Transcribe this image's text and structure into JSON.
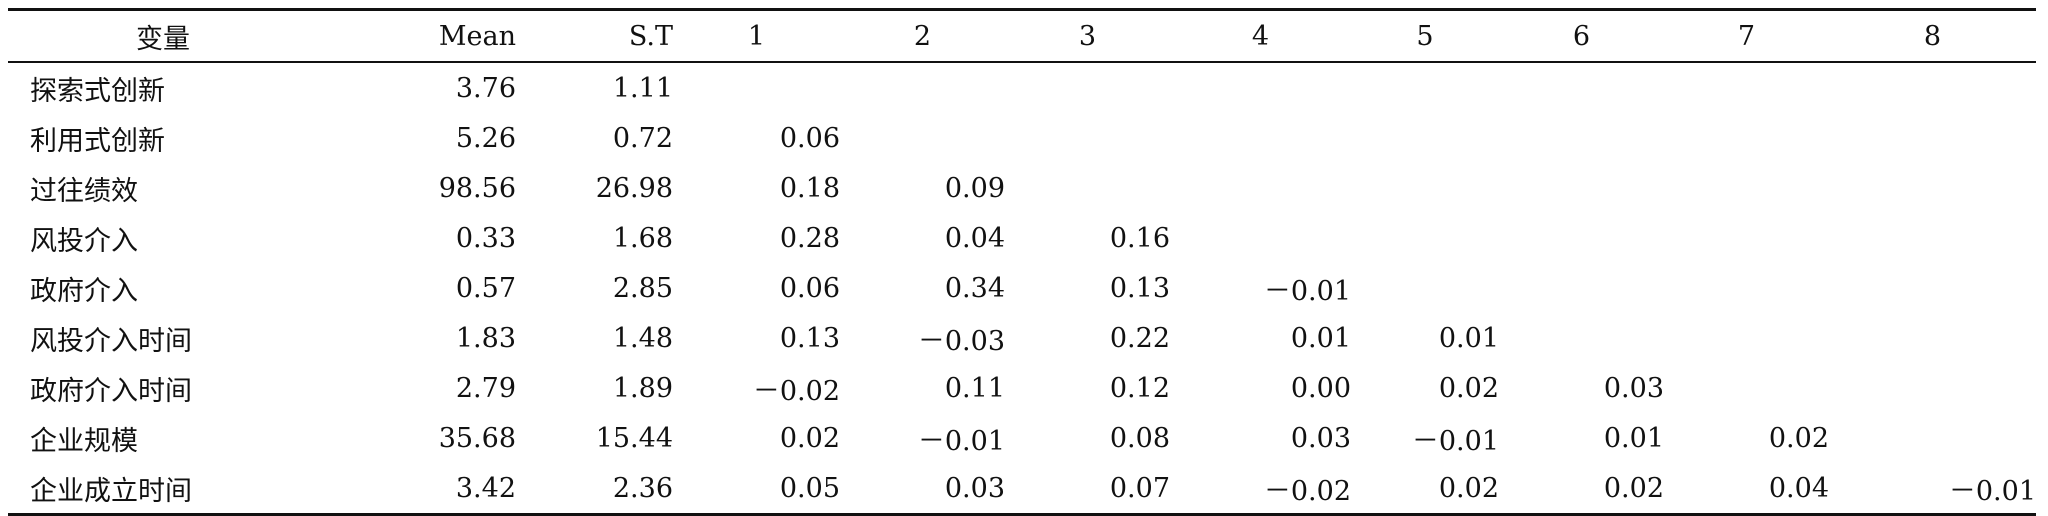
{
  "table": {
    "headers": [
      "变量",
      "Mean",
      "S.T",
      "1",
      "2",
      "3",
      "4",
      "5",
      "6",
      "7",
      "8"
    ],
    "rows": [
      {
        "label": "探索式创新",
        "values": [
          "3.76",
          "1.11",
          "",
          "",
          "",
          "",
          "",
          "",
          "",
          ""
        ]
      },
      {
        "label": "利用式创新",
        "values": [
          "5.26",
          "0.72",
          "0.06",
          "",
          "",
          "",
          "",
          "",
          "",
          ""
        ]
      },
      {
        "label": "过往绩效",
        "values": [
          "98.56",
          "26.98",
          "0.18",
          "0.09",
          "",
          "",
          "",
          "",
          "",
          ""
        ]
      },
      {
        "label": "风投介入",
        "values": [
          "0.33",
          "1.68",
          "0.28",
          "0.04",
          "0.16",
          "",
          "",
          "",
          "",
          ""
        ]
      },
      {
        "label": "政府介入",
        "values": [
          "0.57",
          "2.85",
          "0.06",
          "0.34",
          "0.13",
          "－0.01",
          "",
          "",
          "",
          ""
        ]
      },
      {
        "label": "风投介入时间",
        "values": [
          "1.83",
          "1.48",
          "0.13",
          "－0.03",
          "0.22",
          "0.01",
          "0.01",
          "",
          "",
          ""
        ]
      },
      {
        "label": "政府介入时间",
        "values": [
          "2.79",
          "1.89",
          "－0.02",
          "0.11",
          "0.12",
          "0.00",
          "0.02",
          "0.03",
          "",
          ""
        ]
      },
      {
        "label": "企业规模",
        "values": [
          "35.68",
          "15.44",
          "0.02",
          "－0.01",
          "0.08",
          "0.03",
          "－0.01",
          "0.01",
          "0.02",
          ""
        ]
      },
      {
        "label": "企业成立时间",
        "values": [
          "3.42",
          "2.36",
          "0.05",
          "0.03",
          "0.07",
          "－0.02",
          "0.02",
          "0.02",
          "0.04",
          "－0.01"
        ]
      }
    ]
  }
}
